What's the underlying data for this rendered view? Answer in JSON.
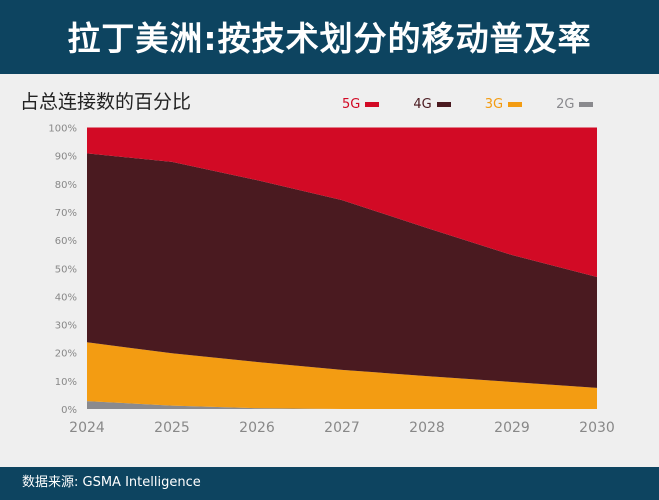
{
  "header": {
    "title": "拉丁美洲:按技术划分的移动普及率"
  },
  "footer": {
    "source": "数据来源: GSMA Intelligence"
  },
  "chart_data": {
    "type": "area",
    "stacked": true,
    "title": "拉丁美洲:按技术划分的移动普及率",
    "subtitle": "占总连接数的百分比",
    "x": [
      "2024",
      "2025",
      "2026",
      "2027",
      "2028",
      "2029",
      "2030"
    ],
    "ylim": [
      0,
      100
    ],
    "yticks": [
      "0%",
      "10%",
      "20%",
      "30%",
      "40%",
      "50%",
      "60%",
      "70%",
      "80%",
      "90%",
      "100%"
    ],
    "legend_placement": "top-right",
    "grid": false,
    "series": [
      {
        "name": "2G",
        "color": "#8a8a8e",
        "values": [
          2.8,
          1.2,
          0.3,
          0,
          0,
          0,
          0
        ]
      },
      {
        "name": "3G",
        "color": "#f39c12",
        "values": [
          20.9,
          18.6,
          16.4,
          13.9,
          11.7,
          9.6,
          7.5
        ]
      },
      {
        "name": "4G",
        "color": "#4a1a20",
        "values": [
          67.1,
          68.0,
          64.6,
          60.3,
          52.6,
          45.1,
          39.4
        ]
      },
      {
        "name": "5G",
        "color": "#d20a25",
        "values": [
          9.2,
          12.2,
          18.7,
          25.8,
          35.7,
          45.3,
          53.1
        ]
      }
    ],
    "legend_order": [
      "5G",
      "4G",
      "3G",
      "2G"
    ]
  }
}
